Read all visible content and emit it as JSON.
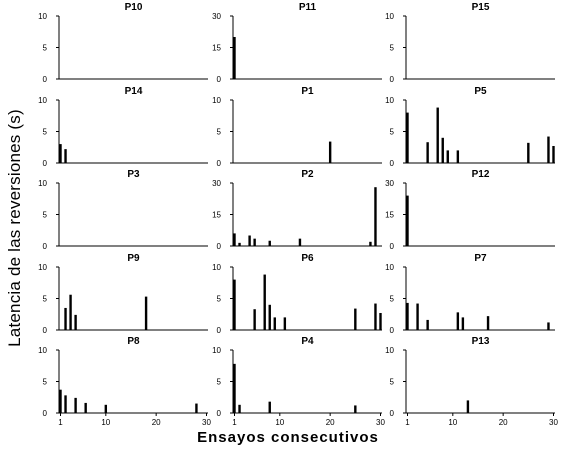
{
  "figure": {
    "ylabel": "Latencia de las reversiones (s)",
    "xlabel": "Ensayos consecutivos"
  },
  "chart_data": [
    {
      "type": "bar",
      "title": "P10",
      "ylim": [
        0,
        10
      ],
      "yticks": [
        0,
        5,
        10
      ],
      "xlim": [
        1,
        30
      ],
      "x": [],
      "values": []
    },
    {
      "type": "bar",
      "title": "P11",
      "ylim": [
        0,
        30
      ],
      "yticks": [
        0,
        15,
        30
      ],
      "xlim": [
        1,
        30
      ],
      "x": [
        1
      ],
      "values": [
        20
      ]
    },
    {
      "type": "bar",
      "title": "P15",
      "ylim": [
        0,
        10
      ],
      "yticks": [
        0,
        5,
        10
      ],
      "xlim": [
        1,
        30
      ],
      "x": [],
      "values": []
    },
    {
      "type": "bar",
      "title": "P14",
      "ylim": [
        0,
        10
      ],
      "yticks": [
        0,
        5,
        10
      ],
      "xlim": [
        1,
        30
      ],
      "x": [
        1,
        2
      ],
      "values": [
        3.0,
        2.2
      ]
    },
    {
      "type": "bar",
      "title": "P1",
      "ylim": [
        0,
        10
      ],
      "yticks": [
        0,
        5,
        10
      ],
      "xlim": [
        1,
        30
      ],
      "x": [
        20
      ],
      "values": [
        3.4
      ]
    },
    {
      "type": "bar",
      "title": "P5",
      "ylim": [
        0,
        10
      ],
      "yticks": [
        0,
        5,
        10
      ],
      "xlim": [
        1,
        30
      ],
      "x": [
        1,
        5,
        7,
        8,
        9,
        11,
        25,
        29,
        30
      ],
      "values": [
        8.0,
        3.3,
        8.8,
        4.0,
        2.0,
        2.0,
        3.2,
        4.2,
        2.7
      ]
    },
    {
      "type": "bar",
      "title": "P3",
      "ylim": [
        0,
        10
      ],
      "yticks": [
        0,
        5,
        10
      ],
      "xlim": [
        1,
        30
      ],
      "x": [],
      "values": []
    },
    {
      "type": "bar",
      "title": "P2",
      "ylim": [
        0,
        30
      ],
      "yticks": [
        0,
        15,
        30
      ],
      "xlim": [
        1,
        30
      ],
      "x": [
        1,
        2,
        4,
        5,
        8,
        14,
        28,
        29
      ],
      "values": [
        6,
        1.5,
        5,
        3.5,
        2.5,
        3.5,
        2,
        28
      ]
    },
    {
      "type": "bar",
      "title": "P12",
      "ylim": [
        0,
        30
      ],
      "yticks": [
        0,
        15,
        30
      ],
      "xlim": [
        1,
        30
      ],
      "x": [
        1
      ],
      "values": [
        24
      ]
    },
    {
      "type": "bar",
      "title": "P9",
      "ylim": [
        0,
        10
      ],
      "yticks": [
        0,
        5,
        10
      ],
      "xlim": [
        1,
        30
      ],
      "x": [
        2,
        3,
        4,
        18
      ],
      "values": [
        3.5,
        5.6,
        2.4,
        5.3
      ]
    },
    {
      "type": "bar",
      "title": "P6",
      "ylim": [
        0,
        10
      ],
      "yticks": [
        0,
        5,
        10
      ],
      "xlim": [
        1,
        30
      ],
      "x": [
        1,
        5,
        7,
        8,
        9,
        11,
        25,
        29,
        30
      ],
      "values": [
        8.0,
        3.3,
        8.8,
        4.0,
        2.0,
        2.0,
        3.4,
        4.2,
        2.7
      ]
    },
    {
      "type": "bar",
      "title": "P7",
      "ylim": [
        0,
        10
      ],
      "yticks": [
        0,
        5,
        10
      ],
      "xlim": [
        1,
        30
      ],
      "x": [
        1,
        3,
        5,
        11,
        12,
        17,
        29
      ],
      "values": [
        4.3,
        4.2,
        1.6,
        2.8,
        2.0,
        2.2,
        1.2
      ]
    },
    {
      "type": "bar",
      "title": "P8",
      "ylim": [
        0,
        10
      ],
      "yticks": [
        0,
        5,
        10
      ],
      "xlim": [
        1,
        30
      ],
      "x": [
        1,
        2,
        4,
        6,
        10,
        28
      ],
      "values": [
        3.7,
        2.8,
        2.4,
        1.6,
        1.3,
        1.5
      ],
      "xticks": [
        1,
        10,
        20,
        30
      ]
    },
    {
      "type": "bar",
      "title": "P4",
      "ylim": [
        0,
        10
      ],
      "yticks": [
        0,
        5,
        10
      ],
      "xlim": [
        1,
        30
      ],
      "x": [
        1,
        2,
        8,
        25
      ],
      "values": [
        7.8,
        1.3,
        1.8,
        1.2
      ],
      "xticks": [
        1,
        10,
        20,
        30
      ]
    },
    {
      "type": "bar",
      "title": "P13",
      "ylim": [
        0,
        10
      ],
      "yticks": [
        0,
        5,
        10
      ],
      "xlim": [
        1,
        30
      ],
      "x": [
        13
      ],
      "values": [
        2.0
      ],
      "xticks": [
        1,
        10,
        20,
        30
      ]
    }
  ]
}
